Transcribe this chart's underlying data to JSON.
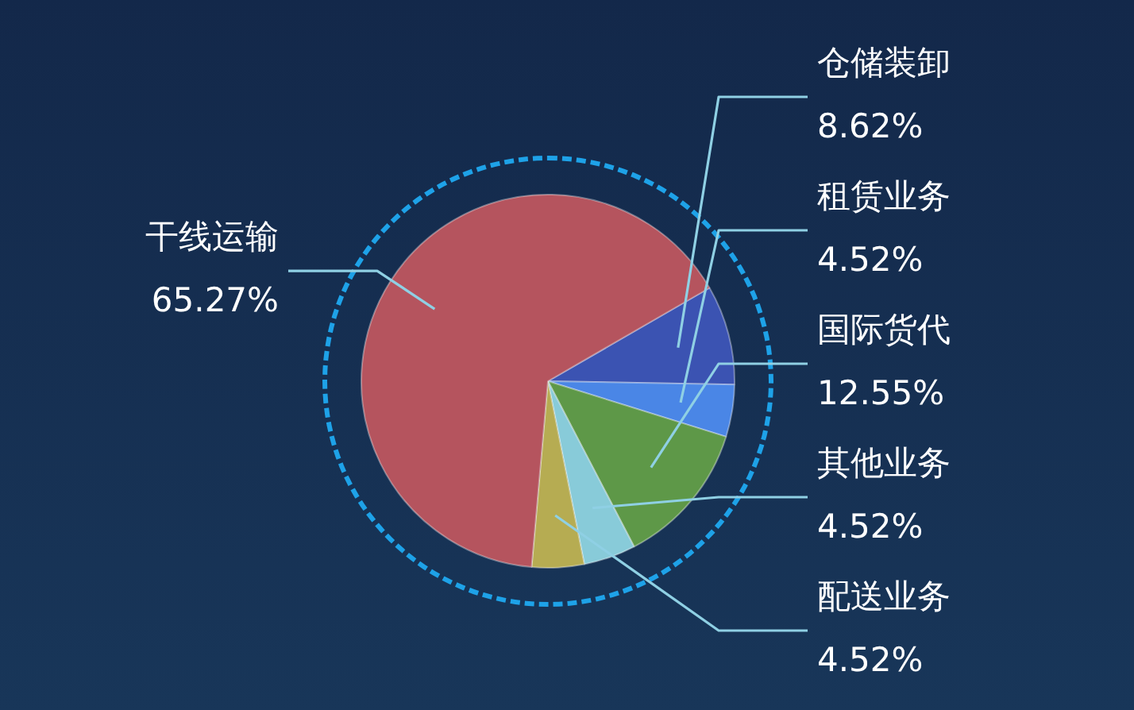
{
  "chart_data": {
    "type": "pie",
    "categories": [
      "仓储装卸",
      "租赁业务",
      "国际货代",
      "其他业务",
      "配送业务",
      "干线运输"
    ],
    "values": [
      8.62,
      4.52,
      12.55,
      4.52,
      4.52,
      65.27
    ],
    "value_labels": [
      "8.62%",
      "4.52%",
      "12.55%",
      "4.52%",
      "4.52%",
      "65.27%"
    ],
    "colors": [
      "#3b53b2",
      "#4a86e6",
      "#5e9848",
      "#88cbd9",
      "#b6ac52",
      "#b5545e"
    ]
  }
}
